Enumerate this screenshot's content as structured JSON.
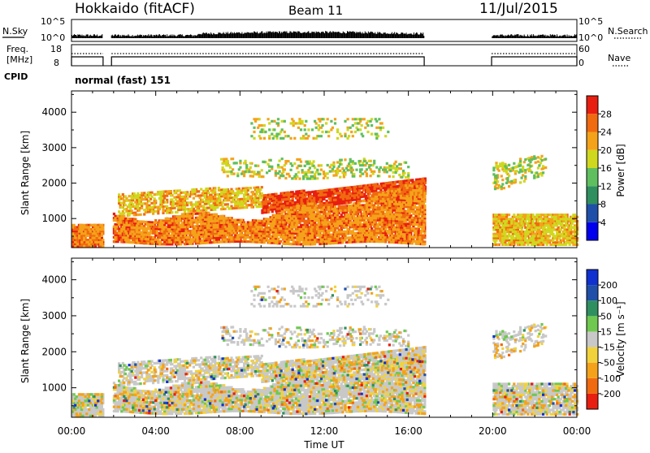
{
  "header": {
    "station": "Hokkaido (fitACF)",
    "beam": "Beam 11",
    "date": "11/Jul/2015"
  },
  "top_panel": {
    "nsky_label": "N.Sky",
    "nsky_ticks": [
      "10^5",
      "10^0"
    ],
    "nsearch_label": "N.Search",
    "nsearch_ticks": [
      "10^5",
      "10^0"
    ],
    "freq_label_1": "Freq.",
    "freq_label_2": "[MHz]",
    "freq_ticks": [
      "18",
      "8"
    ],
    "nave_label": "Nave",
    "nave_ticks": [
      "60",
      "0"
    ],
    "cpid_label": "CPID",
    "cpid_value": "normal (fast) 151"
  },
  "colors": {
    "power": [
      "#0000ee",
      "#1f4fa8",
      "#2f8f5f",
      "#5fbf5f",
      "#cfd81f",
      "#f4a21a",
      "#f06a10",
      "#e81e10"
    ],
    "velocity": [
      "#e81e10",
      "#f06a10",
      "#f4a21a",
      "#f2d23c",
      "#c8c8c8",
      "#6fc84f",
      "#2f8f5f",
      "#1f4fa8",
      "#1030d0"
    ],
    "gray": "#c8c8c8"
  },
  "chart_data": [
    {
      "type": "heatmap",
      "name": "power",
      "ylabel": "Slant Range [km]",
      "ytick_labels": [
        "1000",
        "2000",
        "3000",
        "4000"
      ],
      "yticks": [
        1000,
        2000,
        3000,
        4000
      ],
      "ylim": [
        180,
        4600
      ],
      "xlim": [
        0,
        24
      ],
      "colorbar_label": "Power [dB]",
      "colorbar_ticks": [
        "4",
        "8",
        "12",
        "16",
        "20",
        "24",
        "28"
      ],
      "colorbar_values": [
        4,
        8,
        12,
        16,
        20,
        24,
        28
      ],
      "colorbar_range": [
        0,
        32
      ]
    },
    {
      "type": "heatmap",
      "name": "velocity",
      "ylabel": "Slant Range [km]",
      "ytick_labels": [
        "1000",
        "2000",
        "3000",
        "4000"
      ],
      "yticks": [
        1000,
        2000,
        3000,
        4000
      ],
      "ylim": [
        180,
        4600
      ],
      "xlim": [
        0,
        24
      ],
      "xtick_labels": [
        "00:00",
        "04:00",
        "08:00",
        "12:00",
        "16:00",
        "20:00",
        "00:00"
      ],
      "xticks": [
        0,
        4,
        8,
        12,
        16,
        20,
        24
      ],
      "xlabel": "Time UT",
      "colorbar_label": "Velocity [m s⁻¹]",
      "colorbar_ticks": [
        "200",
        "100",
        "50",
        "15",
        "-15",
        "-50",
        "-100",
        "-200"
      ]
    }
  ]
}
